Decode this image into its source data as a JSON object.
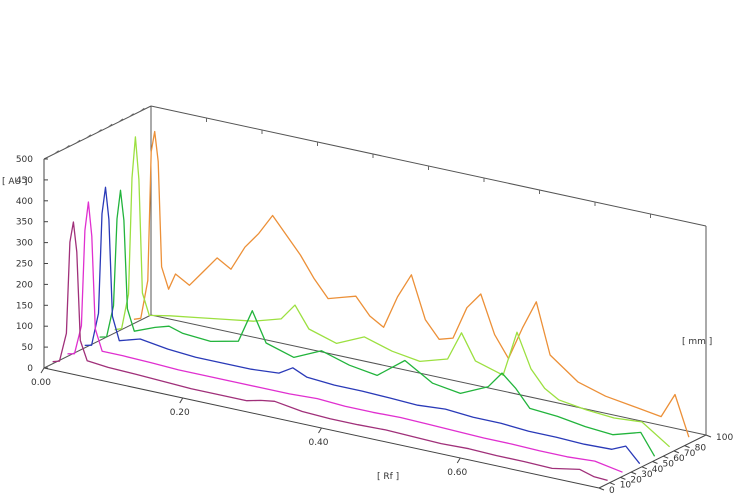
{
  "chart_data": {
    "type": "line",
    "projection": "3d-waterfall",
    "axes": {
      "y": {
        "label": "[ AU ]",
        "ticks": [
          "0",
          "50",
          "100",
          "150",
          "200",
          "250",
          "300",
          "350",
          "400",
          "450",
          "500"
        ],
        "range": [
          0,
          500
        ]
      },
      "x": {
        "label": "[ Rf ]",
        "ticks": [
          "0.00",
          "0.20",
          "0.40",
          "0.60"
        ],
        "range": [
          0,
          0.8
        ]
      },
      "z": {
        "label": "[ mm ]",
        "ticks": [
          "0",
          "10",
          "20",
          "30",
          "40",
          "50",
          "60",
          "70",
          "80",
          "100"
        ],
        "range": [
          0,
          100
        ]
      }
    },
    "grid": false,
    "series": [
      {
        "color": "#a0307a",
        "z": 8,
        "x": [
          0.0,
          0.01,
          0.02,
          0.025,
          0.03,
          0.035,
          0.04,
          0.05,
          0.08,
          0.12,
          0.16,
          0.2,
          0.24,
          0.28,
          0.3,
          0.32,
          0.36,
          0.4,
          0.44,
          0.48,
          0.52,
          0.56,
          0.6,
          0.64,
          0.68,
          0.72,
          0.74,
          0.76,
          0.78,
          0.8
        ],
        "y": [
          5,
          10,
          80,
          300,
          350,
          280,
          70,
          25,
          20,
          18,
          15,
          12,
          12,
          12,
          20,
          25,
          15,
          12,
          12,
          14,
          12,
          10,
          12,
          10,
          10,
          8,
          14,
          20,
          10,
          8
        ]
      },
      {
        "color": "#e030d0",
        "z": 22,
        "x": [
          0.0,
          0.01,
          0.02,
          0.025,
          0.03,
          0.035,
          0.04,
          0.05,
          0.08,
          0.12,
          0.16,
          0.2,
          0.24,
          0.28,
          0.32,
          0.36,
          0.4,
          0.44,
          0.48,
          0.52,
          0.56,
          0.6,
          0.64,
          0.68,
          0.72,
          0.76,
          0.8
        ],
        "y": [
          6,
          10,
          80,
          310,
          380,
          300,
          80,
          30,
          30,
          28,
          25,
          25,
          25,
          25,
          25,
          28,
          24,
          24,
          26,
          24,
          22,
          20,
          20,
          18,
          18,
          22,
          10
        ]
      },
      {
        "color": "#2a3ab8",
        "z": 38,
        "x": [
          0.0,
          0.01,
          0.02,
          0.025,
          0.03,
          0.035,
          0.04,
          0.05,
          0.08,
          0.12,
          0.16,
          0.2,
          0.24,
          0.28,
          0.3,
          0.32,
          0.36,
          0.4,
          0.44,
          0.48,
          0.52,
          0.56,
          0.6,
          0.64,
          0.68,
          0.72,
          0.76,
          0.78,
          0.8
        ],
        "y": [
          6,
          10,
          90,
          330,
          395,
          320,
          90,
          35,
          50,
          40,
          35,
          35,
          35,
          40,
          60,
          45,
          40,
          40,
          38,
          35,
          40,
          35,
          35,
          30,
          30,
          28,
          30,
          45,
          10
        ]
      },
      {
        "color": "#22b43c",
        "z": 52,
        "x": [
          0.0,
          0.01,
          0.02,
          0.025,
          0.03,
          0.035,
          0.04,
          0.05,
          0.08,
          0.1,
          0.12,
          0.16,
          0.2,
          0.22,
          0.24,
          0.28,
          0.32,
          0.36,
          0.4,
          0.44,
          0.48,
          0.52,
          0.56,
          0.58,
          0.6,
          0.62,
          0.66,
          0.7,
          0.74,
          0.78,
          0.8
        ],
        "y": [
          8,
          12,
          90,
          300,
          370,
          300,
          90,
          40,
          60,
          70,
          60,
          55,
          70,
          150,
          80,
          60,
          90,
          70,
          60,
          110,
          70,
          60,
          90,
          130,
          100,
          60,
          55,
          45,
          40,
          60,
          10
        ]
      },
      {
        "color": "#9ce040",
        "z": 66,
        "x": [
          0.0,
          0.01,
          0.02,
          0.025,
          0.03,
          0.035,
          0.04,
          0.05,
          0.08,
          0.12,
          0.16,
          0.2,
          0.24,
          0.26,
          0.28,
          0.32,
          0.36,
          0.4,
          0.44,
          0.48,
          0.5,
          0.52,
          0.56,
          0.58,
          0.6,
          0.62,
          0.64,
          0.68,
          0.72,
          0.76,
          0.8
        ],
        "y": [
          8,
          14,
          100,
          380,
          480,
          380,
          110,
          60,
          70,
          80,
          90,
          100,
          120,
          160,
          110,
          90,
          120,
          100,
          90,
          110,
          180,
          120,
          100,
          210,
          130,
          90,
          70,
          60,
          55,
          60,
          15
        ]
      },
      {
        "color": "#ec9038",
        "z": 84,
        "x": [
          0.0,
          0.01,
          0.02,
          0.025,
          0.03,
          0.035,
          0.04,
          0.05,
          0.06,
          0.08,
          0.1,
          0.12,
          0.14,
          0.16,
          0.18,
          0.2,
          0.22,
          0.24,
          0.26,
          0.28,
          0.3,
          0.32,
          0.34,
          0.36,
          0.38,
          0.4,
          0.42,
          0.44,
          0.46,
          0.48,
          0.5,
          0.52,
          0.54,
          0.56,
          0.58,
          0.6,
          0.64,
          0.68,
          0.72,
          0.76,
          0.78,
          0.8
        ],
        "y": [
          10,
          16,
          110,
          420,
          470,
          400,
          150,
          100,
          140,
          120,
          160,
          200,
          180,
          240,
          280,
          330,
          290,
          250,
          200,
          160,
          170,
          180,
          140,
          120,
          200,
          260,
          160,
          120,
          130,
          210,
          250,
          160,
          110,
          190,
          260,
          140,
          90,
          70,
          60,
          50,
          110,
          15
        ]
      }
    ]
  }
}
